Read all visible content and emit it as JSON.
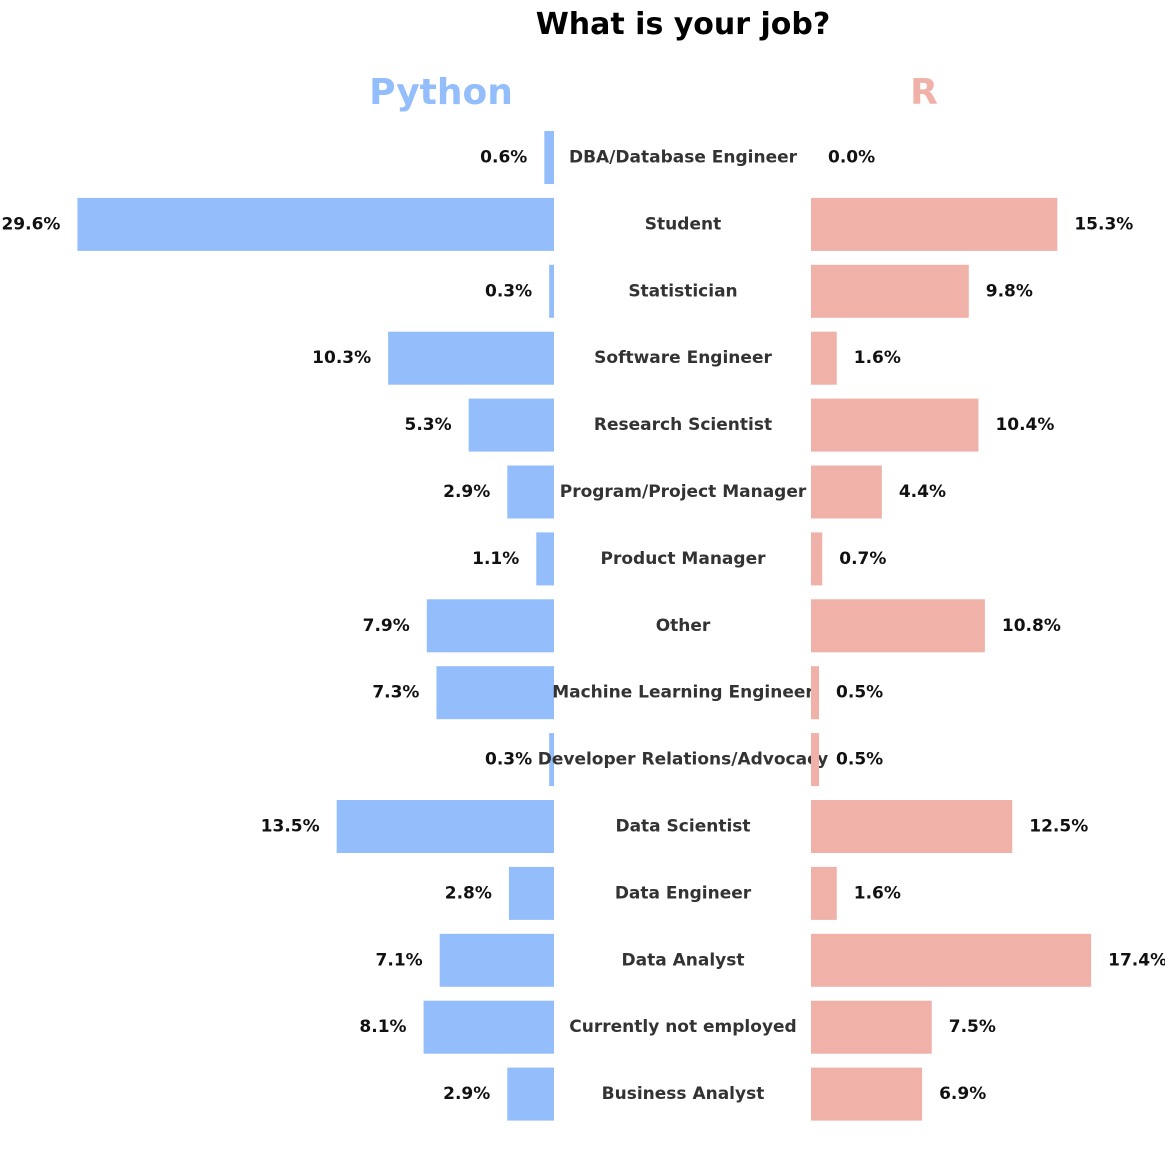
{
  "chart_data": {
    "type": "bar",
    "title": "What is your job?",
    "colors": {
      "python": "#93bdfb",
      "r": "#f0b1a9"
    },
    "categories": [
      "DBA/Database Engineer",
      "Student",
      "Statistician",
      "Software Engineer",
      "Research Scientist",
      "Program/Project Manager",
      "Product Manager",
      "Other",
      "Machine Learning Engineer",
      "Developer Relations/Advocacy",
      "Data Scientist",
      "Data Engineer",
      "Data Analyst",
      "Currently not employed",
      "Business Analyst"
    ],
    "series": [
      {
        "name": "Python",
        "values": [
          0.6,
          29.6,
          0.3,
          10.3,
          5.3,
          2.9,
          1.1,
          7.9,
          7.3,
          0.3,
          13.5,
          2.8,
          7.1,
          8.1,
          2.9
        ],
        "labels": [
          "0.6%",
          "29.6%",
          "0.3%",
          "10.3%",
          "5.3%",
          "2.9%",
          "1.1%",
          "7.9%",
          "7.3%",
          "0.3%",
          "13.5%",
          "2.8%",
          "7.1%",
          "8.1%",
          "2.9%"
        ]
      },
      {
        "name": "R",
        "values": [
          0.0,
          15.3,
          9.8,
          1.6,
          10.4,
          4.4,
          0.7,
          10.8,
          0.5,
          0.5,
          12.5,
          1.6,
          17.4,
          7.5,
          6.9
        ],
        "labels": [
          "0.0%",
          "15.3%",
          "9.8%",
          "1.6%",
          "10.4%",
          "4.4%",
          "0.7%",
          "10.8%",
          "0.5%",
          "0.5%",
          "12.5%",
          "1.6%",
          "17.4%",
          "7.5%",
          "6.9%"
        ]
      }
    ],
    "xlim": [
      0,
      30
    ],
    "grid": false,
    "legend": "none"
  }
}
